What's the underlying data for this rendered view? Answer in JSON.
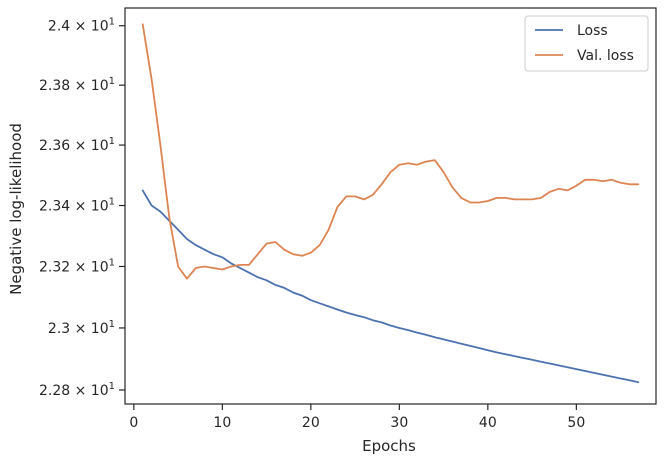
{
  "chart_data": {
    "type": "line",
    "xlabel": "Epochs",
    "ylabel": "Negative log-likelihood",
    "xlim": [
      -1,
      59
    ],
    "ylim": [
      22.755,
      24.06
    ],
    "y_scale": "log",
    "x_ticks": [
      0,
      10,
      20,
      30,
      40,
      50
    ],
    "x_tick_labels": [
      "0",
      "10",
      "20",
      "30",
      "40",
      "50"
    ],
    "y_ticks": [
      22.8,
      23.0,
      23.2,
      23.4,
      23.6,
      23.8,
      24.0
    ],
    "y_tick_labels": [
      {
        "mantissa": "2.28",
        "base": "10",
        "exp": "1"
      },
      {
        "mantissa": "2.3",
        "base": "10",
        "exp": "1"
      },
      {
        "mantissa": "2.32",
        "base": "10",
        "exp": "1"
      },
      {
        "mantissa": "2.34",
        "base": "10",
        "exp": "1"
      },
      {
        "mantissa": "2.36",
        "base": "10",
        "exp": "1"
      },
      {
        "mantissa": "2.38",
        "base": "10",
        "exp": "1"
      },
      {
        "mantissa": "2.4",
        "base": "10",
        "exp": "1"
      }
    ],
    "grid": false,
    "legend_position": "top-right",
    "series": [
      {
        "name": "Loss",
        "color": "#4c72b0",
        "x": [
          1,
          2,
          3,
          4,
          5,
          6,
          7,
          8,
          9,
          10,
          11,
          12,
          13,
          14,
          15,
          16,
          17,
          18,
          19,
          20,
          21,
          22,
          23,
          24,
          25,
          26,
          27,
          28,
          29,
          30,
          31,
          32,
          33,
          34,
          35,
          36,
          37,
          38,
          39,
          40,
          41,
          42,
          43,
          44,
          45,
          46,
          47,
          48,
          49,
          50,
          51,
          52,
          53,
          54,
          55,
          56,
          57
        ],
        "values": [
          23.45,
          23.4,
          23.38,
          23.35,
          23.32,
          23.29,
          23.27,
          23.255,
          23.24,
          23.23,
          23.21,
          23.195,
          23.18,
          23.165,
          23.155,
          23.14,
          23.13,
          23.115,
          23.105,
          23.09,
          23.08,
          23.07,
          23.06,
          23.05,
          23.042,
          23.035,
          23.025,
          23.018,
          23.008,
          23.0,
          22.993,
          22.985,
          22.978,
          22.97,
          22.963,
          22.956,
          22.949,
          22.942,
          22.935,
          22.928,
          22.921,
          22.915,
          22.909,
          22.903,
          22.897,
          22.891,
          22.885,
          22.879,
          22.873,
          22.867,
          22.861,
          22.855,
          22.849,
          22.843,
          22.837,
          22.831,
          22.825
        ]
      },
      {
        "name": "Val. loss",
        "color": "#dd8452",
        "x": [
          1,
          2,
          3,
          4,
          5,
          6,
          7,
          8,
          9,
          10,
          11,
          12,
          13,
          14,
          15,
          16,
          17,
          18,
          19,
          20,
          21,
          22,
          23,
          24,
          25,
          26,
          27,
          28,
          29,
          30,
          31,
          32,
          33,
          34,
          35,
          36,
          37,
          38,
          39,
          40,
          41,
          42,
          43,
          44,
          45,
          46,
          47,
          48,
          49,
          50,
          51,
          52,
          53,
          54,
          55,
          56,
          57
        ],
        "values": [
          24.005,
          23.82,
          23.6,
          23.36,
          23.2,
          23.16,
          23.195,
          23.2,
          23.195,
          23.19,
          23.2,
          23.205,
          23.205,
          23.24,
          23.275,
          23.28,
          23.255,
          23.24,
          23.235,
          23.245,
          23.27,
          23.32,
          23.395,
          23.43,
          23.43,
          23.42,
          23.435,
          23.47,
          23.51,
          23.535,
          23.54,
          23.535,
          23.545,
          23.55,
          23.51,
          23.46,
          23.425,
          23.41,
          23.41,
          23.415,
          23.425,
          23.425,
          23.42,
          23.42,
          23.42,
          23.425,
          23.445,
          23.455,
          23.45,
          23.465,
          23.485,
          23.485,
          23.48,
          23.485,
          23.475,
          23.47,
          23.47
        ]
      }
    ]
  }
}
